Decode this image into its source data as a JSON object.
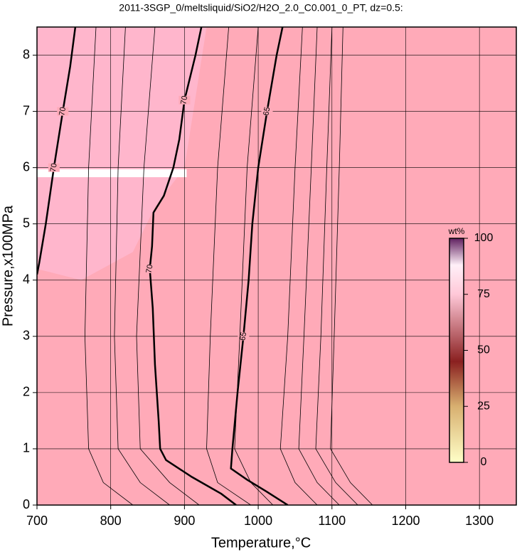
{
  "chart_data": {
    "type": "contour",
    "title": "2011-3SGP_0/meltsliquid/SiO2/H2O_2.0_C0.001_0_PT, dz=0.5:",
    "x_label": "Temperature,°C",
    "y_label": "Pressure,x100MPa",
    "xlim": [
      700,
      1350
    ],
    "ylim": [
      0,
      8.5
    ],
    "xticks": [
      700,
      800,
      900,
      1000,
      1100,
      1200,
      1300
    ],
    "yticks": [
      0,
      1,
      2,
      3,
      4,
      5,
      6,
      7,
      8
    ],
    "grid": true,
    "background": "#ffaab8",
    "line_color": "#000000",
    "contours": [
      {
        "level": 70,
        "bold": true,
        "x": [
          752,
          745,
          735,
          723,
          712,
          703,
          700
        ],
        "y": [
          8.5,
          7.8,
          7.0,
          6.0,
          5.0,
          4.3,
          4.1
        ]
      },
      {
        "level": 70,
        "bold": true,
        "x": [
          923,
          915,
          900,
          893,
          885,
          872,
          858,
          856,
          853,
          857,
          860,
          865,
          867,
          875,
          910,
          950,
          970
        ],
        "y": [
          8.5,
          8.0,
          7.2,
          6.5,
          6.0,
          5.5,
          5.2,
          4.6,
          4.2,
          3.5,
          2.5,
          1.5,
          1.0,
          0.8,
          0.5,
          0.2,
          0
        ]
      },
      {
        "level": 65,
        "bold": true,
        "x": [
          1033,
          1025,
          1012,
          1000,
          992,
          987,
          980,
          972,
          965,
          963,
          985,
          1010,
          1040
        ],
        "y": [
          8.5,
          8.0,
          7.0,
          6.0,
          5.0,
          4.0,
          3.0,
          2.0,
          1.0,
          0.65,
          0.45,
          0.25,
          0
        ]
      },
      {
        "bold": false,
        "x": [
          780,
          770,
          765,
          770,
          790,
          830
        ],
        "y": [
          8.5,
          6.0,
          3.0,
          1.0,
          0.4,
          0
        ]
      },
      {
        "bold": false,
        "x": [
          820,
          810,
          805,
          810,
          840,
          880
        ],
        "y": [
          8.5,
          6.0,
          3.0,
          1.0,
          0.4,
          0
        ]
      },
      {
        "bold": false,
        "x": [
          860,
          845,
          835,
          840,
          880,
          920
        ],
        "y": [
          8.5,
          6.0,
          3.0,
          1.0,
          0.4,
          0
        ]
      },
      {
        "bold": false,
        "x": [
          960,
          945,
          935,
          930,
          945,
          990
        ],
        "y": [
          8.5,
          6.0,
          3.0,
          1.0,
          0.4,
          0
        ]
      },
      {
        "bold": false,
        "x": [
          1000,
          985,
          975,
          968,
          990,
          1020
        ],
        "y": [
          8.5,
          6.0,
          3.0,
          1.0,
          0.4,
          0
        ]
      },
      {
        "bold": false,
        "x": [
          1060,
          1050,
          1040,
          1030,
          1050,
          1080
        ],
        "y": [
          8.5,
          6.0,
          3.0,
          1.0,
          0.4,
          0
        ]
      },
      {
        "bold": false,
        "x": [
          1080,
          1072,
          1062,
          1055,
          1080,
          1110
        ],
        "y": [
          8.5,
          6.0,
          3.0,
          1.0,
          0.4,
          0
        ]
      },
      {
        "bold": false,
        "x": [
          1100,
          1093,
          1085,
          1078,
          1105,
          1135
        ],
        "y": [
          8.5,
          6.0,
          3.0,
          1.0,
          0.4,
          0
        ]
      },
      {
        "bold": false,
        "x": [
          1115,
          1110,
          1103,
          1098,
          1125,
          1155
        ],
        "y": [
          8.5,
          6.0,
          3.0,
          1.0,
          0.4,
          0
        ]
      }
    ],
    "colorbar": {
      "label": "wt%",
      "range": [
        0,
        100
      ],
      "ticks": [
        0,
        25,
        50,
        75,
        100
      ]
    }
  }
}
